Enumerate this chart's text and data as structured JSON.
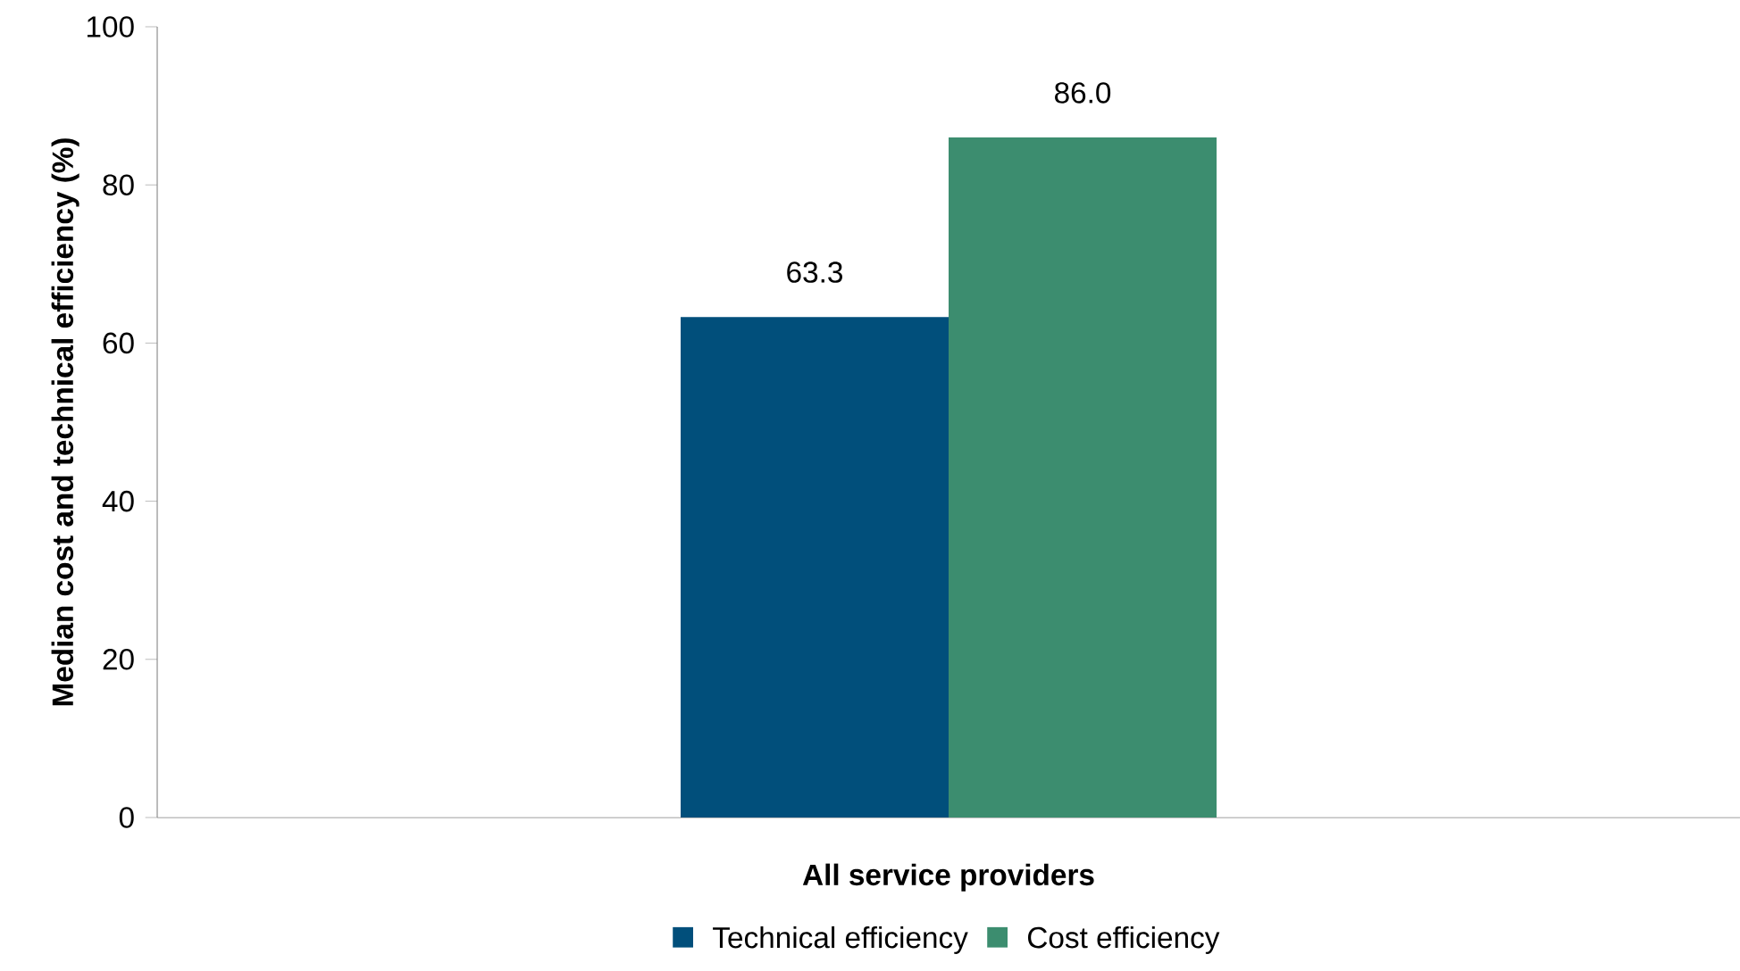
{
  "chart_data": {
    "type": "bar",
    "xlabel": null,
    "ylabel": "Median cost and technical efficiency (%)",
    "categories": [
      "All service providers"
    ],
    "series": [
      {
        "name": "Technical efficiency",
        "color": "#014f7b",
        "values": [
          63.3
        ],
        "value_labels": [
          "63.3"
        ]
      },
      {
        "name": "Cost efficiency",
        "color": "#3c8d6f",
        "values": [
          86.0
        ],
        "value_labels": [
          "86.0"
        ]
      }
    ],
    "ylim": [
      0,
      100
    ],
    "yticks": [
      0,
      20,
      40,
      60,
      80,
      100
    ],
    "grid": false,
    "legend": "bottom"
  }
}
